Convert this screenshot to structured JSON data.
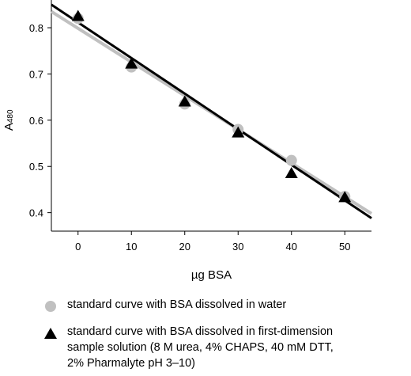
{
  "chart_data": {
    "type": "scatter",
    "title": "",
    "xlabel": "µg BSA",
    "ylabel": "A",
    "ylabel_subscript": "480",
    "xlim": [
      -5,
      55
    ],
    "ylim": [
      0.36,
      0.86
    ],
    "x_ticks": [
      0,
      10,
      20,
      30,
      40,
      50
    ],
    "y_ticks": [
      0.4,
      0.5,
      0.6,
      0.7,
      0.8
    ],
    "x_tick_labels": [
      "0",
      "10",
      "20",
      "30",
      "40",
      "50"
    ],
    "y_tick_labels": [
      "0.4",
      "0.5",
      "0.6",
      "0.7",
      "0.8"
    ],
    "grid": false,
    "legend_position": "bottom",
    "series": [
      {
        "name": "standard curve with BSA dissolved in water",
        "marker": "circle",
        "color": "#c0c0c0",
        "x": [
          0,
          10,
          20,
          30,
          40,
          50
        ],
        "y": [
          0.82,
          0.715,
          0.635,
          0.58,
          0.513,
          0.435
        ],
        "fit": {
          "x": [
            -5,
            55
          ],
          "y": [
            0.835,
            0.398
          ]
        }
      },
      {
        "name": "standard curve with BSA dissolved in first-dimension\nsample solution (8 M urea, 4% CHAPS, 40 mM DTT,\n2% Pharmalyte pH 3–10)",
        "marker": "triangle",
        "color": "#000000",
        "x": [
          0,
          10,
          20,
          30,
          40,
          50
        ],
        "y": [
          0.825,
          0.722,
          0.64,
          0.573,
          0.485,
          0.433
        ],
        "fit": {
          "x": [
            -5,
            55
          ],
          "y": [
            0.85,
            0.388
          ]
        }
      }
    ]
  },
  "legend": {
    "water_label": "standard curve with BSA dissolved in water",
    "sample_label": "standard curve with BSA dissolved in first-dimension\nsample solution (8 M urea, 4% CHAPS, 40 mM DTT,\n2% Pharmalyte pH 3–10)"
  }
}
